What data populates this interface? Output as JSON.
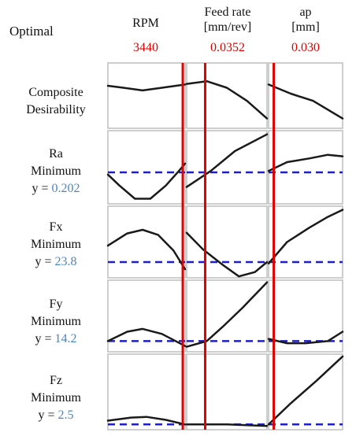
{
  "header": {
    "optimal_label": "Optimal",
    "factors": [
      {
        "name": "RPM",
        "unit": "",
        "optimal": "3440"
      },
      {
        "name": "Feed rate",
        "unit": "[mm/rev]",
        "optimal": "0.0352"
      },
      {
        "name": "ap",
        "unit": "[mm]",
        "optimal": "0.030"
      }
    ]
  },
  "rows": [
    {
      "name_line1": "Composite",
      "name_line2": "Desirability",
      "goal": "",
      "y_prefix": "",
      "y_value": ""
    },
    {
      "name_line1": "Ra",
      "name_line2": "",
      "goal": "Minimum",
      "y_prefix": "y = ",
      "y_value": "0.202"
    },
    {
      "name_line1": "Fx",
      "name_line2": "",
      "goal": "Minimum",
      "y_prefix": "y = ",
      "y_value": "23.8"
    },
    {
      "name_line1": "Fy",
      "name_line2": "",
      "goal": "Minimum",
      "y_prefix": "y = ",
      "y_value": "14.2"
    },
    {
      "name_line1": "Fz",
      "name_line2": "",
      "goal": "Minimum",
      "y_prefix": "y = ",
      "y_value": "2.5"
    }
  ],
  "chart_data": {
    "type": "line",
    "description_colors": {
      "curve": "#1a1a1a",
      "optimum_line": "#e00000",
      "reference_line": "#1f1fc8",
      "value_text": "#4a86c5"
    },
    "factors": [
      "RPM",
      "Feed rate",
      "ap"
    ],
    "optimal_fraction": [
      0.97,
      0.23,
      0.07
    ],
    "panels": [
      {
        "response": "Composite Desirability",
        "ref_level": null,
        "curves": [
          [
            [
              0,
              0.35
            ],
            [
              0.2,
              0.38
            ],
            [
              0.45,
              0.42
            ],
            [
              0.7,
              0.38
            ],
            [
              1,
              0.33
            ]
          ],
          [
            [
              0,
              0.32
            ],
            [
              0.25,
              0.28
            ],
            [
              0.5,
              0.38
            ],
            [
              0.75,
              0.58
            ],
            [
              1,
              0.85
            ]
          ],
          [
            [
              0,
              0.33
            ],
            [
              0.3,
              0.47
            ],
            [
              0.6,
              0.58
            ],
            [
              1,
              0.85
            ]
          ]
        ]
      },
      {
        "response": "Ra",
        "ref_level": 0.57,
        "curves": [
          [
            [
              0,
              0.6
            ],
            [
              0.15,
              0.75
            ],
            [
              0.35,
              0.93
            ],
            [
              0.55,
              0.93
            ],
            [
              0.75,
              0.75
            ],
            [
              0.92,
              0.55
            ],
            [
              1,
              0.45
            ]
          ],
          [
            [
              0,
              0.77
            ],
            [
              0.3,
              0.55
            ],
            [
              0.6,
              0.28
            ],
            [
              1,
              0.05
            ]
          ],
          [
            [
              0,
              0.55
            ],
            [
              0.25,
              0.43
            ],
            [
              0.55,
              0.38
            ],
            [
              0.8,
              0.33
            ],
            [
              1,
              0.35
            ]
          ]
        ]
      },
      {
        "response": "Fx",
        "ref_level": 0.78,
        "curves": [
          [
            [
              0,
              0.55
            ],
            [
              0.25,
              0.38
            ],
            [
              0.45,
              0.33
            ],
            [
              0.65,
              0.4
            ],
            [
              0.85,
              0.62
            ],
            [
              1,
              0.88
            ]
          ],
          [
            [
              0,
              0.37
            ],
            [
              0.2,
              0.6
            ],
            [
              0.45,
              0.82
            ],
            [
              0.65,
              0.98
            ],
            [
              0.85,
              0.92
            ],
            [
              1,
              0.78
            ]
          ],
          [
            [
              0,
              0.8
            ],
            [
              0.25,
              0.5
            ],
            [
              0.55,
              0.3
            ],
            [
              0.8,
              0.15
            ],
            [
              1,
              0.05
            ]
          ]
        ]
      },
      {
        "response": "Fy",
        "ref_level": 0.85,
        "curves": [
          [
            [
              0,
              0.85
            ],
            [
              0.25,
              0.72
            ],
            [
              0.45,
              0.68
            ],
            [
              0.7,
              0.75
            ],
            [
              1,
              0.92
            ]
          ],
          [
            [
              0,
              0.93
            ],
            [
              0.25,
              0.85
            ],
            [
              0.45,
              0.65
            ],
            [
              0.7,
              0.38
            ],
            [
              1,
              0.03
            ]
          ],
          [
            [
              0,
              0.82
            ],
            [
              0.25,
              0.88
            ],
            [
              0.5,
              0.88
            ],
            [
              0.8,
              0.85
            ],
            [
              1,
              0.72
            ]
          ]
        ]
      },
      {
        "response": "Fz",
        "ref_level": 0.93,
        "curves": [
          [
            [
              0,
              0.88
            ],
            [
              0.3,
              0.84
            ],
            [
              0.5,
              0.83
            ],
            [
              0.75,
              0.87
            ],
            [
              1,
              0.93
            ]
          ],
          [
            [
              0,
              0.93
            ],
            [
              0.5,
              0.93
            ],
            [
              1,
              0.95
            ]
          ],
          [
            [
              0,
              0.93
            ],
            [
              0.3,
              0.65
            ],
            [
              0.65,
              0.35
            ],
            [
              1,
              0.03
            ]
          ]
        ]
      }
    ]
  }
}
